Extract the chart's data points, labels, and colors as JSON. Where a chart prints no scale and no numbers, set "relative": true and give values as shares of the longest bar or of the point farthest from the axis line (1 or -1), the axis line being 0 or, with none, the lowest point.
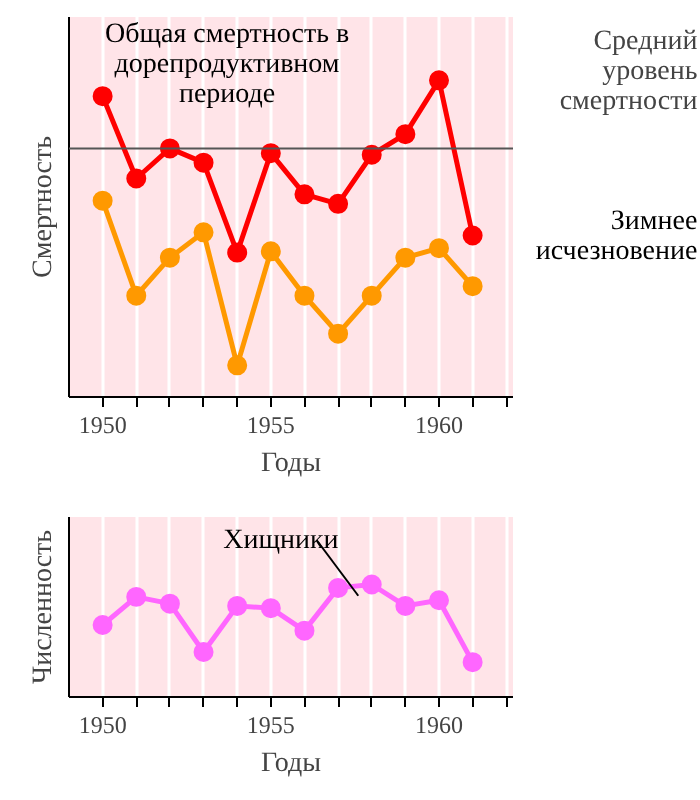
{
  "chart_data": [
    {
      "type": "line",
      "relative": true,
      "xlabel": "Годы",
      "ylabel": "Смертность",
      "x": [
        1950,
        1951,
        1952,
        1953,
        1954,
        1955,
        1956,
        1957,
        1958,
        1959,
        1960,
        1961
      ],
      "xlim": [
        1949,
        1962.2
      ],
      "xticks": [
        1950,
        {
          "value": 1951,
          "label": null
        },
        {
          "value": 1952,
          "label": null
        },
        {
          "value": 1953,
          "label": null
        },
        {
          "value": 1954,
          "label": null
        },
        1955,
        {
          "value": 1956,
          "label": null
        },
        {
          "value": 1957,
          "label": null
        },
        {
          "value": 1958,
          "label": null
        },
        {
          "value": 1959,
          "label": null
        },
        1960,
        {
          "value": 1961,
          "label": null
        },
        {
          "value": 1962,
          "label": null
        }
      ],
      "tick_labels": "x",
      "grid": "x",
      "marker": "circle",
      "line_style": "solid",
      "series": [
        {
          "name": "Общая смертность в\nдорепродуктивном\nпериоде",
          "color": "#ff0000",
          "values": [
            0.95,
            0.69,
            0.785,
            0.74,
            0.456,
            0.77,
            0.64,
            0.61,
            0.765,
            0.83,
            1,
            0.51
          ]
        },
        {
          "name": "Зимнее\nисчезновение",
          "color": "#ff9900",
          "values": [
            0.62,
            0.32,
            0.44,
            0.52,
            0.1,
            0.46,
            0.32,
            0.2,
            0.32,
            0.44,
            0.47,
            0.35
          ]
        }
      ],
      "ref_lines": [
        {
          "axis": "y",
          "value": 0.785,
          "label": "Средний\nуровень\nсмертности",
          "color": "#555555"
        }
      ]
    },
    {
      "type": "line",
      "relative": true,
      "xlabel": "Годы",
      "ylabel": "Численность",
      "x": [
        1950,
        1951,
        1952,
        1953,
        1954,
        1955,
        1956,
        1957,
        1958,
        1959,
        1960,
        1961
      ],
      "xlim": [
        1949,
        1962.2
      ],
      "xticks": [
        1950,
        {
          "value": 1951,
          "label": null
        },
        {
          "value": 1952,
          "label": null
        },
        {
          "value": 1953,
          "label": null
        },
        {
          "value": 1954,
          "label": null
        },
        1955,
        {
          "value": 1956,
          "label": null
        },
        {
          "value": 1957,
          "label": null
        },
        {
          "value": 1958,
          "label": null
        },
        {
          "value": 1959,
          "label": null
        },
        1960,
        {
          "value": 1961,
          "label": null
        },
        {
          "value": 1962,
          "label": null
        }
      ],
      "tick_labels": "x",
      "grid": "x",
      "marker": "circle",
      "line_style": "solid",
      "series": [
        {
          "name": "Хищники",
          "color": "#ff66ff",
          "values": [
            0.64,
            0.89,
            0.83,
            0.4,
            0.81,
            0.79,
            0.59,
            0.97,
            1,
            0.81,
            0.86,
            0.31
          ]
        }
      ]
    }
  ]
}
